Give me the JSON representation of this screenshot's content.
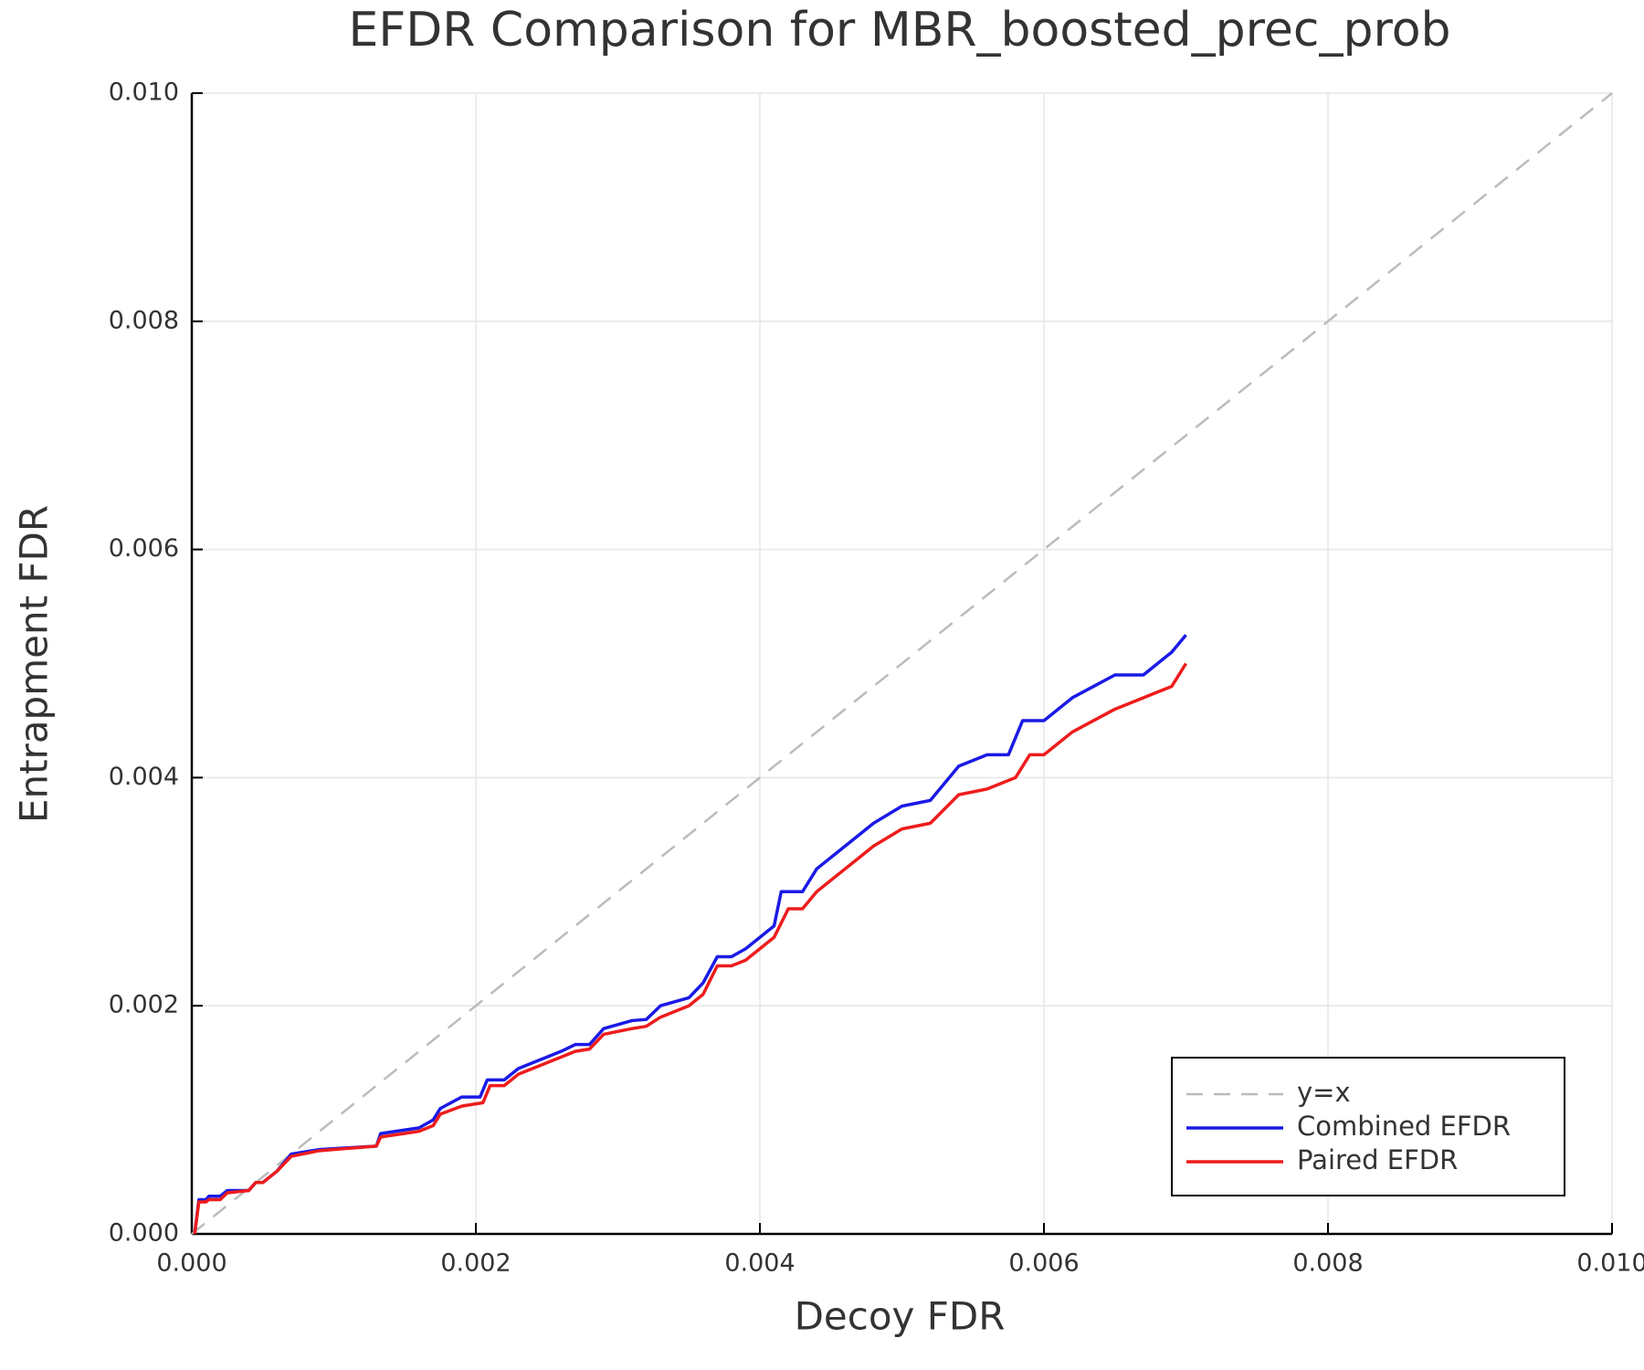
{
  "chart_data": {
    "type": "line",
    "title": "EFDR Comparison for MBR_boosted_prec_prob",
    "x_label": "Decoy FDR",
    "y_label": "Entrapment FDR",
    "xlim": [
      0,
      0.01
    ],
    "ylim": [
      0,
      0.01
    ],
    "xticks": [
      {
        "value": 0,
        "label": "0.000"
      },
      {
        "value": 0.002,
        "label": "0.002"
      },
      {
        "value": 0.004,
        "label": "0.004"
      },
      {
        "value": 0.006,
        "label": "0.006"
      },
      {
        "value": 0.008,
        "label": "0.008"
      },
      {
        "value": 0.01,
        "label": "0.010"
      }
    ],
    "yticks": [
      {
        "value": 0,
        "label": "0.000"
      },
      {
        "value": 0.002,
        "label": "0.002"
      },
      {
        "value": 0.004,
        "label": "0.004"
      },
      {
        "value": 0.006,
        "label": "0.006"
      },
      {
        "value": 0.008,
        "label": "0.008"
      },
      {
        "value": 0.01,
        "label": "0.010"
      }
    ],
    "grid": true,
    "legend": "lower right",
    "series": [
      {
        "name": "y=x",
        "color": "#bbbbbb",
        "dashed": true,
        "x": [
          0,
          0.01
        ],
        "values": [
          0,
          0.01
        ]
      },
      {
        "name": "Combined EFDR",
        "color": "#1a1ae6",
        "dashed": false,
        "x": [
          2e-05,
          5e-05,
          0.0001,
          0.00012,
          0.0002,
          0.00025,
          0.0004,
          0.00045,
          0.0005,
          0.0006,
          0.0007,
          0.0009,
          0.0013,
          0.00133,
          0.0016,
          0.0017,
          0.00175,
          0.0019,
          0.00203,
          0.00208,
          0.0022,
          0.0023,
          0.0024,
          0.0026,
          0.0027,
          0.0028,
          0.0029,
          0.0031,
          0.0032,
          0.0033,
          0.0035,
          0.0036,
          0.0037,
          0.0038,
          0.0039,
          0.004,
          0.0041,
          0.00415,
          0.0043,
          0.0044,
          0.0046,
          0.0047,
          0.0048,
          0.005,
          0.0052,
          0.0054,
          0.0056,
          0.00575,
          0.00585,
          0.006,
          0.0062,
          0.0065,
          0.0067,
          0.0069,
          0.007
        ],
        "values": [
          0,
          0.0003,
          0.0003,
          0.00033,
          0.00033,
          0.00038,
          0.00038,
          0.00045,
          0.00045,
          0.00055,
          0.0007,
          0.00074,
          0.00077,
          0.00088,
          0.00093,
          0.001,
          0.0011,
          0.0012,
          0.0012,
          0.00135,
          0.00135,
          0.00145,
          0.0015,
          0.0016,
          0.00166,
          0.00166,
          0.0018,
          0.00187,
          0.00188,
          0.002,
          0.00207,
          0.0022,
          0.00243,
          0.00243,
          0.0025,
          0.0026,
          0.0027,
          0.003,
          0.003,
          0.0032,
          0.0034,
          0.0035,
          0.0036,
          0.00375,
          0.0038,
          0.0041,
          0.0042,
          0.0042,
          0.0045,
          0.0045,
          0.0047,
          0.0049,
          0.0049,
          0.0051,
          0.00525
        ]
      },
      {
        "name": "Paired EFDR",
        "color": "#ee1c1c",
        "dashed": false,
        "x": [
          2e-05,
          5e-05,
          0.0001,
          0.00012,
          0.0002,
          0.00025,
          0.0004,
          0.00045,
          0.0005,
          0.0006,
          0.0007,
          0.0009,
          0.0013,
          0.00133,
          0.0016,
          0.0017,
          0.00175,
          0.0019,
          0.00205,
          0.0021,
          0.0022,
          0.0023,
          0.0024,
          0.0026,
          0.0027,
          0.0028,
          0.0029,
          0.0031,
          0.0032,
          0.0033,
          0.0035,
          0.0036,
          0.0037,
          0.0038,
          0.0039,
          0.004,
          0.0041,
          0.0042,
          0.0043,
          0.0044,
          0.0046,
          0.0047,
          0.0048,
          0.005,
          0.0052,
          0.0054,
          0.0056,
          0.0058,
          0.0059,
          0.006,
          0.0062,
          0.0065,
          0.0067,
          0.0069,
          0.007
        ],
        "values": [
          0,
          0.00028,
          0.00028,
          0.0003,
          0.0003,
          0.00036,
          0.00038,
          0.00045,
          0.00045,
          0.00055,
          0.00068,
          0.00073,
          0.00077,
          0.00085,
          0.0009,
          0.00095,
          0.00105,
          0.00112,
          0.00115,
          0.0013,
          0.0013,
          0.0014,
          0.00145,
          0.00155,
          0.0016,
          0.00162,
          0.00175,
          0.0018,
          0.00182,
          0.0019,
          0.002,
          0.0021,
          0.00235,
          0.00235,
          0.0024,
          0.0025,
          0.0026,
          0.00285,
          0.00285,
          0.003,
          0.0032,
          0.0033,
          0.0034,
          0.00355,
          0.0036,
          0.00385,
          0.0039,
          0.004,
          0.0042,
          0.0042,
          0.0044,
          0.0046,
          0.0047,
          0.0048,
          0.005
        ]
      }
    ]
  }
}
